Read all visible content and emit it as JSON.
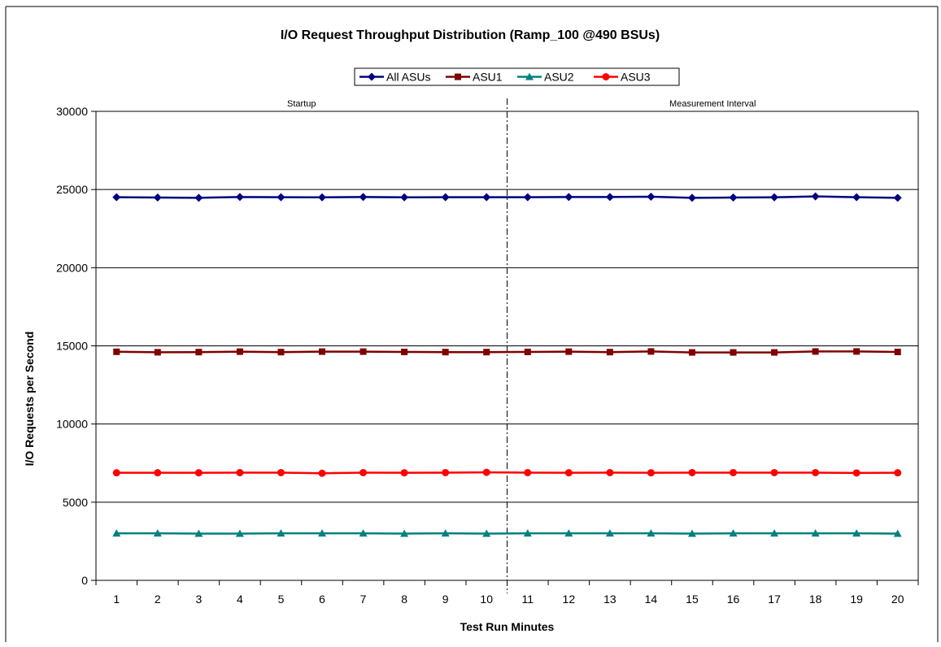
{
  "chart_data": {
    "type": "line",
    "title": "I/O Request Throughput Distribution (Ramp_100 @490 BSUs)",
    "xlabel": "Test Run Minutes",
    "ylabel": "I/O Requests per Second",
    "categories": [
      1,
      2,
      3,
      4,
      5,
      6,
      7,
      8,
      9,
      10,
      11,
      12,
      13,
      14,
      15,
      16,
      17,
      18,
      19,
      20
    ],
    "ylim": [
      0,
      30000
    ],
    "yticks": [
      0,
      5000,
      10000,
      15000,
      20000,
      25000,
      30000
    ],
    "grid": true,
    "legend": "top-center",
    "phases": [
      {
        "label": "Startup",
        "from": 1,
        "to": 10
      },
      {
        "label": "Measurement Interval",
        "from": 11,
        "to": 20
      }
    ],
    "divider_after": 10,
    "series": [
      {
        "name": "All ASUs",
        "color": "#000080",
        "marker": "diamond",
        "values": [
          24510,
          24490,
          24470,
          24520,
          24510,
          24500,
          24520,
          24500,
          24510,
          24510,
          24510,
          24520,
          24520,
          24540,
          24470,
          24490,
          24500,
          24560,
          24510,
          24470
        ]
      },
      {
        "name": "ASU1",
        "color": "#800000",
        "marker": "square",
        "values": [
          14620,
          14590,
          14600,
          14630,
          14600,
          14630,
          14630,
          14610,
          14600,
          14600,
          14610,
          14630,
          14600,
          14640,
          14580,
          14580,
          14580,
          14640,
          14640,
          14610
        ]
      },
      {
        "name": "ASU2",
        "color": "#008080",
        "marker": "triangle",
        "values": [
          3010,
          3010,
          2990,
          2990,
          3010,
          3010,
          3010,
          2990,
          3010,
          2990,
          3010,
          3010,
          3010,
          3010,
          2990,
          3010,
          3010,
          3010,
          3010,
          2990
        ]
      },
      {
        "name": "ASU3",
        "color": "#ff0000",
        "marker": "circle",
        "values": [
          6880,
          6880,
          6880,
          6890,
          6890,
          6850,
          6890,
          6880,
          6890,
          6910,
          6890,
          6880,
          6890,
          6880,
          6890,
          6890,
          6890,
          6890,
          6870,
          6880
        ]
      }
    ]
  }
}
